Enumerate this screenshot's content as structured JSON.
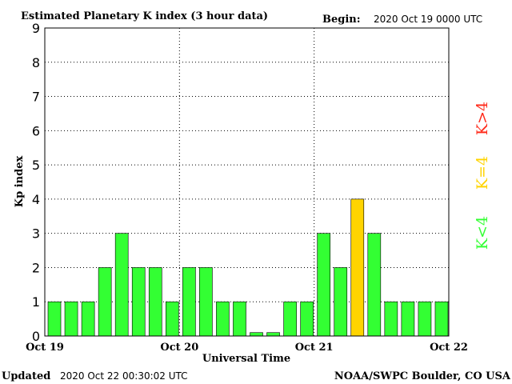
{
  "title": "Estimated Planetary K index (3 hour data)",
  "begin_label": "Begin:",
  "begin_value": "2020 Oct 19 0000 UTC",
  "footer_updated_label": "Updated",
  "footer_updated_value": "2020 Oct 22 00:30:02 UTC",
  "footer_source": "NOAA/SWPC Boulder, CO USA",
  "legend": [
    {
      "label": "K>4",
      "color": "#ff2a1a"
    },
    {
      "label": "K=4",
      "color": "#ffd400"
    },
    {
      "label": "K<4",
      "color": "#33ff33"
    }
  ],
  "chart_data": {
    "type": "bar",
    "xlabel": "Universal Time",
    "ylabel": "Kp index",
    "ylim": [
      0,
      9
    ],
    "yticks": [
      0,
      1,
      2,
      3,
      4,
      5,
      6,
      7,
      8,
      9
    ],
    "x_tick_labels": [
      "Oct 19",
      "Oct 20",
      "Oct 21",
      "Oct 22"
    ],
    "interval_hours": 3,
    "grid": "dotted",
    "values": [
      1,
      1,
      1,
      2,
      3,
      2,
      2,
      1,
      2,
      2,
      1,
      1,
      0.1,
      0.1,
      1,
      1,
      3,
      2,
      4,
      3,
      1,
      1,
      1,
      1
    ],
    "colors": {
      "below_4": "#33ff33",
      "equal_4": "#ffd400",
      "above_4": "#ff2a1a"
    }
  }
}
